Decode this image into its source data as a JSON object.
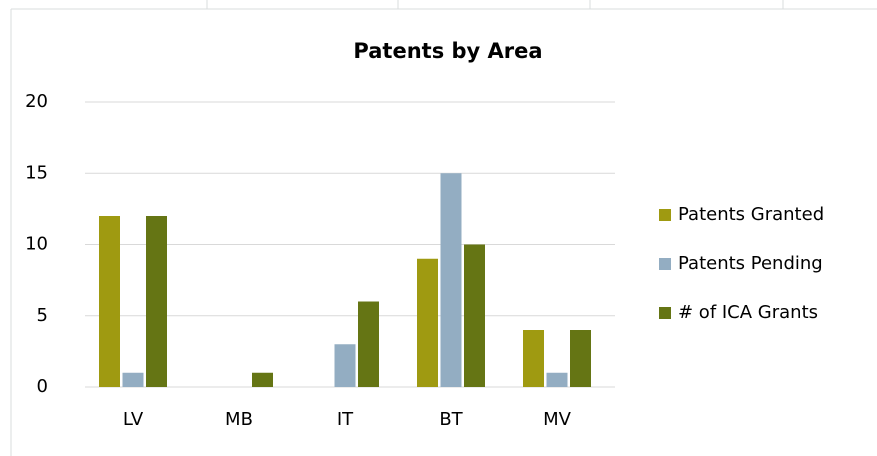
{
  "chart_data": {
    "type": "bar",
    "title": "Patents by Area",
    "categories": [
      "LV",
      "MB",
      "IT",
      "BT",
      "MV"
    ],
    "series": [
      {
        "name": "Patents Granted",
        "color": "#9f9a11",
        "values": [
          12,
          0,
          0,
          9,
          4
        ]
      },
      {
        "name": "Patents Pending",
        "color": "#93adc2",
        "values": [
          1,
          0,
          3,
          15,
          1
        ]
      },
      {
        "name": "# of ICA Grants",
        "color": "#657514",
        "values": [
          12,
          1,
          6,
          10,
          4
        ]
      }
    ],
    "ylim": [
      0,
      20
    ],
    "yticks": [
      0,
      5,
      10,
      15,
      20
    ],
    "grid": true,
    "legend": "right"
  }
}
